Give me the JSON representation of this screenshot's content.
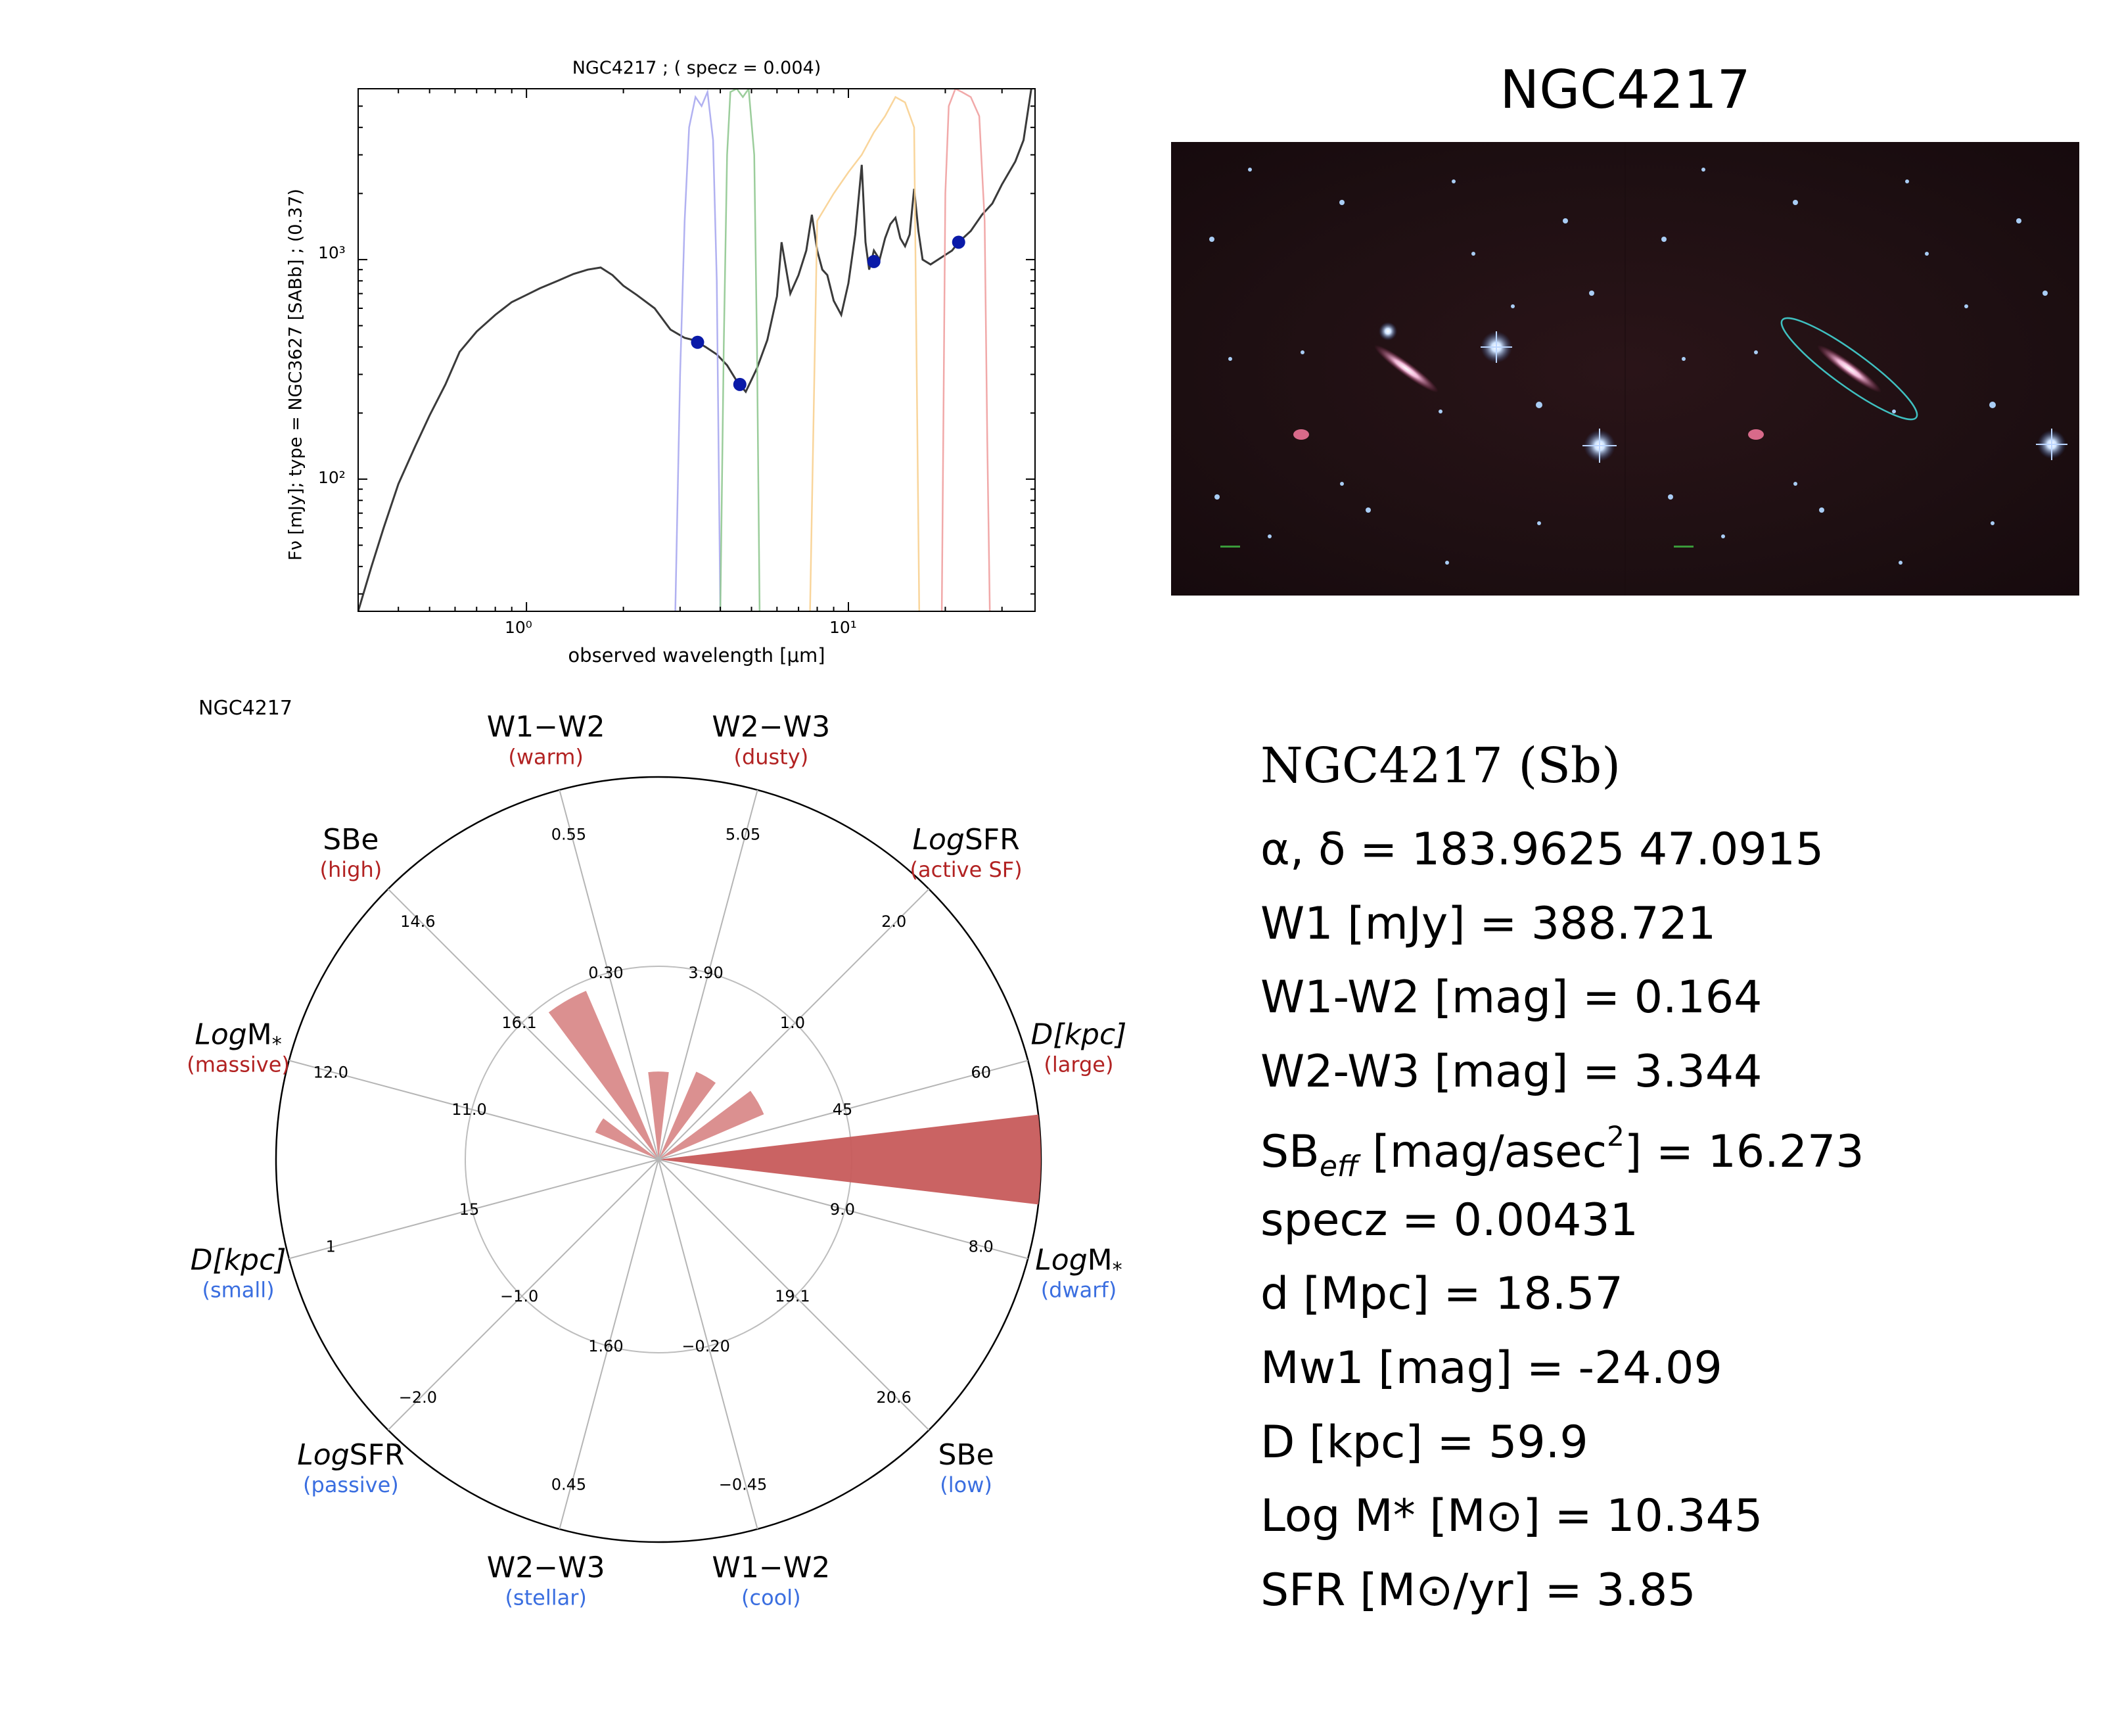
{
  "sed_panel": {
    "title": "NGC4217 ; ( specz = 0.004)",
    "ylabel": "Fν [mJy];  type = NGC3627 [SABb] ; (0.37)",
    "xlabel": "observed wavelength [μm]",
    "y_tick_labels": [
      "10³",
      "10²"
    ],
    "x_tick_labels": [
      "10⁰",
      "10¹"
    ]
  },
  "chart_data": [
    {
      "type": "line",
      "title": "NGC4217 ; ( specz = 0.004)",
      "xlabel": "observed wavelength [μm]",
      "ylabel": "Fν [mJy];  type = NGC3627 [SABb] ; (0.37)",
      "xscale": "log",
      "yscale": "log",
      "xlim": [
        0.3,
        38
      ],
      "ylim": [
        25,
        6000
      ],
      "series": [
        {
          "name": "NGC3627 [SABb]",
          "color": "#3a3a3a",
          "x": [
            0.3,
            0.33,
            0.36,
            0.4,
            0.45,
            0.5,
            0.56,
            0.62,
            0.7,
            0.8,
            0.9,
            1.0,
            1.1,
            1.25,
            1.4,
            1.55,
            1.7,
            1.85,
            2.0,
            2.2,
            2.5,
            2.8,
            3.1,
            3.3,
            3.4,
            3.6,
            3.9,
            4.2,
            4.5,
            4.8,
            5.2,
            5.6,
            6.0,
            6.2,
            6.6,
            7.0,
            7.4,
            7.7,
            8.0,
            8.3,
            8.6,
            9.0,
            9.5,
            10.0,
            10.5,
            11.0,
            11.3,
            11.6,
            12.0,
            12.5,
            13.0,
            13.5,
            14.0,
            14.5,
            15.0,
            15.5,
            16.0,
            16.5,
            17.0,
            18.0,
            19.0,
            20.0,
            21.0,
            22.0,
            24.0,
            26.0,
            28.0,
            30.0,
            33.0,
            35.0,
            37.0
          ],
          "y": [
            25,
            40,
            60,
            95,
            140,
            195,
            270,
            380,
            470,
            560,
            640,
            690,
            740,
            800,
            860,
            900,
            920,
            850,
            760,
            690,
            600,
            480,
            440,
            430,
            420,
            400,
            370,
            330,
            280,
            250,
            320,
            430,
            680,
            1200,
            700,
            850,
            1100,
            1600,
            1100,
            900,
            850,
            650,
            560,
            780,
            1300,
            2700,
            1200,
            900,
            1100,
            1000,
            1250,
            1450,
            1550,
            1250,
            1150,
            1300,
            2100,
            1350,
            1000,
            950,
            1000,
            1050,
            1100,
            1200,
            1350,
            1600,
            1800,
            2200,
            2800,
            3500,
            6000
          ]
        },
        {
          "name": "W1 filter",
          "color": "#a8a8f0",
          "x": [
            2.9,
            3.0,
            3.1,
            3.2,
            3.35,
            3.5,
            3.65,
            3.8,
            3.9,
            4.0
          ],
          "y": [
            25,
            300,
            1500,
            4000,
            5500,
            5000,
            5800,
            3500,
            800,
            25
          ]
        },
        {
          "name": "W2 filter",
          "color": "#90c890",
          "x": [
            4.0,
            4.1,
            4.2,
            4.3,
            4.5,
            4.7,
            4.9,
            5.1,
            5.2,
            5.3
          ],
          "y": [
            25,
            400,
            3000,
            5800,
            6000,
            5500,
            6000,
            3000,
            400,
            25
          ]
        },
        {
          "name": "W3 filter",
          "color": "#f8d090",
          "x": [
            7.6,
            8.0,
            9.0,
            10.0,
            11.0,
            12.0,
            13.0,
            14.0,
            15.0,
            16.0,
            16.6
          ],
          "y": [
            25,
            1500,
            2000,
            2500,
            3000,
            3800,
            4500,
            5500,
            5200,
            4000,
            25
          ]
        },
        {
          "name": "W4 filter",
          "color": "#f0a0a0",
          "x": [
            19.5,
            20.0,
            20.5,
            21.5,
            22.5,
            24.0,
            25.5,
            26.5,
            27.0,
            27.5
          ],
          "y": [
            25,
            2000,
            5000,
            6000,
            5800,
            5500,
            4500,
            1500,
            150,
            25
          ]
        },
        {
          "name": "WISE photometry",
          "color": "#0a1aa8",
          "x": [
            3.4,
            4.6,
            12.0,
            22.0
          ],
          "y": [
            420,
            270,
            980,
            1200
          ]
        }
      ]
    },
    {
      "type": "radar",
      "title": "NGC4217",
      "axes": [
        {
          "name": "D[kpc]",
          "note": "(large)",
          "note_color": "#b22222",
          "ticks": [
            "45",
            "60"
          ],
          "value": 59.9,
          "radius_fraction": 1.0
        },
        {
          "name": "LogSFR",
          "note": "(active SF)",
          "note_color": "#b22222",
          "ticks": [
            "1.0",
            "2.0"
          ],
          "value": 0.59,
          "radius_fraction": 0.3
        },
        {
          "name": "W2−W3",
          "note": "(dusty)",
          "note_color": "#b22222",
          "ticks": [
            "3.90",
            "5.05"
          ],
          "value": 3.344,
          "radius_fraction": 0.25
        },
        {
          "name": "W1−W2",
          "note": "(warm)",
          "note_color": "#b22222",
          "ticks": [
            "0.30",
            "0.55"
          ],
          "value": 0.164,
          "radius_fraction": 0.23
        },
        {
          "name": "SBe",
          "note": "(high)",
          "note_color": "#b22222",
          "ticks": [
            "16.1",
            "14.6"
          ],
          "value": 16.273,
          "radius_fraction": 0.48
        },
        {
          "name": "LogM*",
          "note": "(massive)",
          "note_color": "#b22222",
          "ticks": [
            "11.0",
            "12.0"
          ],
          "value": 10.345,
          "radius_fraction": 0.18
        },
        {
          "name": "D[kpc]",
          "note": "(small)",
          "note_color": "#3a6ee0",
          "ticks": [
            "15",
            "1"
          ],
          "value": 0,
          "radius_fraction": 0
        },
        {
          "name": "LogSFR",
          "note": "(passive)",
          "note_color": "#3a6ee0",
          "ticks": [
            "−1.0",
            "−2.0"
          ],
          "value": 0,
          "radius_fraction": 0
        },
        {
          "name": "W2−W3",
          "note": "(stellar)",
          "note_color": "#3a6ee0",
          "ticks": [
            "1.60",
            "0.45"
          ],
          "value": 0,
          "radius_fraction": 0
        },
        {
          "name": "W1−W2",
          "note": "(cool)",
          "note_color": "#3a6ee0",
          "ticks": [
            "−0.20",
            "−0.45"
          ],
          "value": 0,
          "radius_fraction": 0
        },
        {
          "name": "SBe",
          "note": "(low)",
          "note_color": "#3a6ee0",
          "ticks": [
            "19.1",
            "20.6"
          ],
          "value": 0,
          "radius_fraction": 0
        },
        {
          "name": "LogM*",
          "note": "(dwarf)",
          "note_color": "#3a6ee0",
          "ticks": [
            "9.0",
            "8.0"
          ],
          "value": 0,
          "radius_fraction": 0
        }
      ],
      "fill_color_strong": "#c75b5b",
      "fill_color_light": "#d98a8a"
    }
  ],
  "image_panel": {
    "title": "NGC4217"
  },
  "info_panel": {
    "heading": "NGC4217  (Sb)",
    "coords": "α, δ = 183.9625 47.0915",
    "w1": "W1 [mJy] = 388.721",
    "w1w2": "W1-W2 [mag] = 0.164",
    "w2w3": "W2-W3 [mag] = 3.344",
    "sb_prefix": "SB",
    "sb_sub": "eff",
    "sb_unit": " [mag/asec",
    "sb_sup": "2",
    "sb_value": "] = 16.273",
    "specz": "specz = 0.00431",
    "dist": "d [Mpc] = 18.57",
    "mw1": "Mw1 [mag] = -24.09",
    "diam": "D [kpc] = 59.9",
    "logm": "Log M* [M⊙] = 10.345",
    "sfr": "SFR [M⊙/yr] = 3.85"
  }
}
